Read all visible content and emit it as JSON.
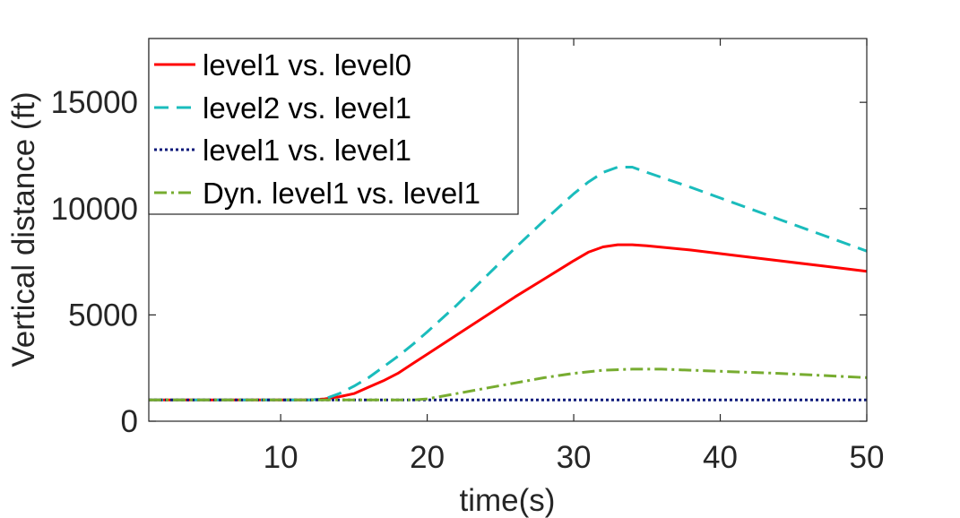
{
  "chart_data": {
    "type": "line",
    "title": "",
    "xlabel": "time(s)",
    "ylabel": "Vertical distance (ft)",
    "xlim": [
      1,
      50
    ],
    "ylim": [
      0,
      18000
    ],
    "xticks": [
      10,
      20,
      30,
      40,
      50
    ],
    "yticks": [
      0,
      5000,
      10000,
      15000
    ],
    "xtick_labels": [
      "10",
      "20",
      "30",
      "40",
      "50"
    ],
    "ytick_labels": [
      "0",
      "5000",
      "10000",
      "15000"
    ],
    "grid": false,
    "legend_position": "top-left",
    "series": [
      {
        "name": "level1 vs. level0",
        "color": "#ff0000",
        "dash": "solid",
        "x": [
          1,
          5,
          10,
          12,
          13,
          14,
          15,
          16,
          17,
          18,
          19,
          20,
          22,
          24,
          26,
          28,
          30,
          31,
          32,
          33,
          34,
          35,
          38,
          41,
          44,
          47,
          50
        ],
        "y": [
          1000,
          1000,
          1000,
          1000,
          1050,
          1150,
          1300,
          1600,
          1900,
          2250,
          2700,
          3150,
          4050,
          4950,
          5850,
          6700,
          7550,
          7950,
          8200,
          8300,
          8300,
          8250,
          8050,
          7800,
          7550,
          7300,
          7050
        ]
      },
      {
        "name": "level2 vs. level1",
        "color": "#1abcbc",
        "dash": "dashed",
        "x": [
          1,
          5,
          10,
          12,
          13,
          14,
          15,
          16,
          17,
          18,
          19,
          20,
          22,
          24,
          26,
          28,
          30,
          31,
          32,
          33,
          34,
          35,
          38,
          41,
          44,
          47,
          50
        ],
        "y": [
          1000,
          1000,
          1000,
          1000,
          1050,
          1300,
          1650,
          2050,
          2550,
          3050,
          3600,
          4200,
          5450,
          6800,
          8150,
          9450,
          10700,
          11250,
          11700,
          11950,
          11950,
          11700,
          11000,
          10250,
          9500,
          8750,
          8000
        ]
      },
      {
        "name": "level1 vs. level1",
        "color": "#0d1a7a",
        "dash": "dotted",
        "x": [
          1,
          10,
          20,
          30,
          40,
          50
        ],
        "y": [
          1000,
          1000,
          1000,
          1000,
          1000,
          1000
        ]
      },
      {
        "name": "Dyn. level1 vs. level1",
        "color": "#77ac30",
        "dash": "dashdot",
        "x": [
          1,
          10,
          19,
          20,
          22,
          24,
          26,
          28,
          30,
          32,
          34,
          36,
          38,
          40,
          44,
          47,
          50
        ],
        "y": [
          1000,
          1000,
          1000,
          1050,
          1300,
          1550,
          1800,
          2050,
          2250,
          2400,
          2450,
          2450,
          2400,
          2350,
          2250,
          2150,
          2050
        ]
      }
    ]
  }
}
